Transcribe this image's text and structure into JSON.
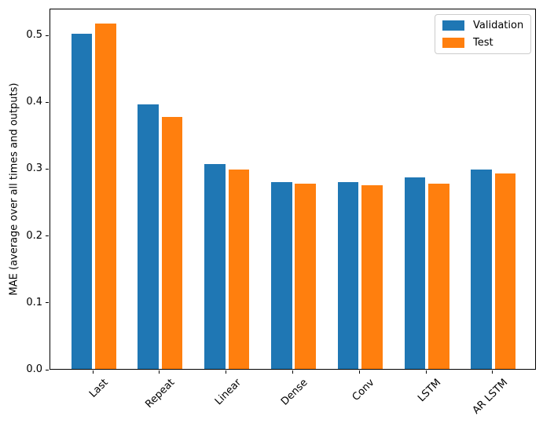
{
  "chart_data": {
    "type": "bar",
    "title": "",
    "categories": [
      "Last",
      "Repeat",
      "Linear",
      "Dense",
      "Conv",
      "LSTM",
      "AR LSTM"
    ],
    "series": [
      {
        "name": "Validation",
        "color": "#1f77b4",
        "values": [
          0.501,
          0.396,
          0.306,
          0.28,
          0.28,
          0.286,
          0.298
        ]
      },
      {
        "name": "Test",
        "color": "#ff7f0e",
        "values": [
          0.516,
          0.377,
          0.298,
          0.277,
          0.275,
          0.277,
          0.292
        ]
      }
    ],
    "xlabel": "",
    "ylabel": "MAE (average over all times and outputs)",
    "ylim": [
      0,
      0.54
    ],
    "yticks": [
      0.0,
      0.1,
      0.2,
      0.3,
      0.4,
      0.5
    ],
    "ytick_labels": [
      "0.0",
      "0.1",
      "0.2",
      "0.3",
      "0.4",
      "0.5"
    ],
    "xtick_rotation": 45,
    "grid": false,
    "legend": {
      "position": "upper right",
      "entries": [
        "Validation",
        "Test"
      ]
    },
    "background": "#ffffff",
    "axis_color": "#000000"
  }
}
